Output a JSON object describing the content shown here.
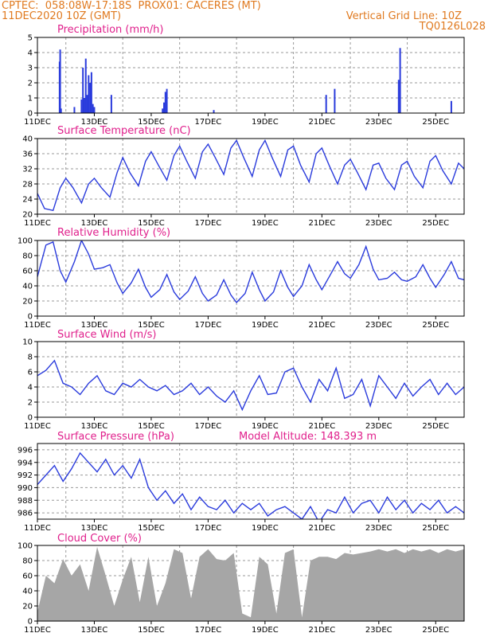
{
  "header": {
    "line1_left": "CPTEC:  058:08W-17:18S  PROX01: CACERES (MT)",
    "line2_left": "11DEC2020 10Z (GMT)",
    "line2_right": "Vertical Grid Line: 10Z",
    "line3_right": "TQ0126L028"
  },
  "colors": {
    "header": "#e07a20",
    "panel_title": "#e0208c",
    "series": "#2a3bdc",
    "cloud": "#a6a6a6",
    "grid": "#9a9a9a"
  },
  "x_axis": {
    "labels": [
      "11DEC",
      "13DEC",
      "15DEC",
      "17DEC",
      "19DEC",
      "21DEC",
      "23DEC",
      "25DEC"
    ],
    "label_days": [
      0,
      2,
      4,
      6,
      8,
      10,
      12,
      14
    ],
    "grid_line_days": [
      1,
      3,
      5,
      7,
      9,
      11,
      13,
      15
    ],
    "range_days": [
      0,
      15
    ]
  },
  "chart_data": [
    {
      "id": "precip",
      "type": "bar",
      "title": "Precipitation  (mm/h)",
      "ylim": [
        0,
        5
      ],
      "yticks": [
        0,
        1,
        2,
        3,
        4,
        5
      ],
      "x": [
        0.78,
        0.8,
        0.83,
        1.3,
        1.55,
        1.6,
        1.65,
        1.7,
        1.75,
        1.8,
        1.85,
        1.9,
        1.95,
        2.0,
        2.6,
        4.4,
        4.45,
        4.5,
        4.55,
        6.2,
        10.15,
        10.45,
        12.7,
        12.75,
        14.55
      ],
      "values": [
        3.4,
        4.2,
        0.3,
        0.4,
        0.9,
        3.0,
        1.0,
        3.6,
        1.2,
        2.5,
        2.0,
        2.7,
        0.6,
        0.4,
        1.2,
        0.3,
        0.7,
        1.4,
        1.6,
        0.2,
        1.2,
        1.6,
        2.2,
        4.3,
        0.8
      ]
    },
    {
      "id": "temp",
      "type": "line",
      "title": "Surface Temperature  (nC)",
      "ylim": [
        20,
        40
      ],
      "yticks": [
        20,
        24,
        28,
        32,
        36,
        40
      ],
      "x": [
        0.0,
        0.25,
        0.55,
        0.8,
        1.0,
        1.25,
        1.55,
        1.8,
        2.0,
        2.25,
        2.55,
        2.8,
        3.0,
        3.25,
        3.55,
        3.8,
        4.0,
        4.25,
        4.55,
        4.8,
        5.0,
        5.25,
        5.55,
        5.8,
        6.0,
        6.25,
        6.55,
        6.8,
        7.0,
        7.25,
        7.55,
        7.8,
        8.0,
        8.25,
        8.55,
        8.8,
        9.0,
        9.25,
        9.55,
        9.8,
        10.0,
        10.25,
        10.55,
        10.8,
        11.0,
        11.25,
        11.55,
        11.8,
        12.0,
        12.25,
        12.55,
        12.8,
        13.0,
        13.25,
        13.55,
        13.8,
        14.0,
        14.25,
        14.55,
        14.8,
        15.0
      ],
      "values": [
        25.5,
        21.5,
        21.0,
        27.0,
        29.5,
        27.0,
        23.0,
        28.0,
        29.5,
        27.0,
        24.5,
        31.0,
        35.0,
        31.0,
        27.5,
        34.0,
        36.5,
        33.0,
        29.0,
        35.5,
        38.0,
        34.0,
        29.5,
        36.5,
        38.5,
        35.0,
        30.5,
        37.5,
        39.5,
        35.0,
        30.0,
        37.0,
        39.5,
        35.0,
        30.0,
        37.0,
        38.0,
        33.0,
        28.5,
        36.0,
        37.5,
        33.0,
        28.0,
        33.0,
        34.5,
        31.0,
        26.5,
        33.0,
        33.5,
        29.5,
        26.5,
        33.0,
        34.0,
        30.0,
        27.0,
        34.0,
        35.5,
        31.5,
        28.0,
        33.5,
        32.0
      ]
    },
    {
      "id": "rh",
      "type": "line",
      "title": "Relative Humidity  (%)",
      "ylim": [
        0,
        100
      ],
      "yticks": [
        0,
        20,
        40,
        60,
        80,
        100
      ],
      "x": [
        0.0,
        0.3,
        0.55,
        0.8,
        1.0,
        1.3,
        1.55,
        1.8,
        2.0,
        2.3,
        2.55,
        2.8,
        3.0,
        3.3,
        3.55,
        3.8,
        4.0,
        4.3,
        4.55,
        4.8,
        5.0,
        5.3,
        5.55,
        5.8,
        6.0,
        6.3,
        6.55,
        6.8,
        7.0,
        7.3,
        7.55,
        7.8,
        8.0,
        8.3,
        8.55,
        8.8,
        9.0,
        9.3,
        9.55,
        9.8,
        10.0,
        10.3,
        10.55,
        10.8,
        11.0,
        11.3,
        11.55,
        11.8,
        12.0,
        12.3,
        12.55,
        12.8,
        13.0,
        13.3,
        13.55,
        13.8,
        14.0,
        14.3,
        14.55,
        14.8,
        15.0
      ],
      "values": [
        52.0,
        94.0,
        98.0,
        60.0,
        45.0,
        72.0,
        100.0,
        82.0,
        62.0,
        64.0,
        68.0,
        44.0,
        30.0,
        44.0,
        62.0,
        38.0,
        25.0,
        35.0,
        55.0,
        32.0,
        22.0,
        33.0,
        52.0,
        30.0,
        20.0,
        28.0,
        48.0,
        28.0,
        18.0,
        30.0,
        58.0,
        35.0,
        20.0,
        32.0,
        60.0,
        38.0,
        26.0,
        40.0,
        68.0,
        48.0,
        35.0,
        55.0,
        72.0,
        56.0,
        50.0,
        68.0,
        92.0,
        62.0,
        48.0,
        50.0,
        58.0,
        48.0,
        46.0,
        52.0,
        68.0,
        50.0,
        38.0,
        55.0,
        72.0,
        50.0,
        48.0
      ]
    },
    {
      "id": "wind",
      "type": "line",
      "title": "Surface Wind  (m/s)",
      "ylim": [
        0,
        10
      ],
      "yticks": [
        0,
        2,
        4,
        6,
        8,
        10
      ],
      "x": [
        0.0,
        0.3,
        0.6,
        0.9,
        1.2,
        1.5,
        1.8,
        2.1,
        2.4,
        2.7,
        3.0,
        3.3,
        3.6,
        3.9,
        4.2,
        4.5,
        4.8,
        5.1,
        5.4,
        5.7,
        6.0,
        6.3,
        6.6,
        6.9,
        7.2,
        7.5,
        7.8,
        8.1,
        8.4,
        8.7,
        9.0,
        9.3,
        9.6,
        9.9,
        10.2,
        10.5,
        10.8,
        11.1,
        11.4,
        11.7,
        12.0,
        12.3,
        12.6,
        12.9,
        13.2,
        13.5,
        13.8,
        14.1,
        14.4,
        14.7,
        15.0
      ],
      "values": [
        5.5,
        6.2,
        7.5,
        4.5,
        4.0,
        3.0,
        4.5,
        5.5,
        3.5,
        3.0,
        4.5,
        4.0,
        5.0,
        4.0,
        3.5,
        4.2,
        3.0,
        3.5,
        4.5,
        3.0,
        4.0,
        2.8,
        2.0,
        3.5,
        1.0,
        3.5,
        5.5,
        3.0,
        3.2,
        6.0,
        6.5,
        4.0,
        2.0,
        5.0,
        3.5,
        6.5,
        2.5,
        3.0,
        5.0,
        1.5,
        5.5,
        4.0,
        2.5,
        4.5,
        2.8,
        4.0,
        5.0,
        3.0,
        4.5,
        3.0,
        4.0
      ]
    },
    {
      "id": "pressure",
      "type": "line",
      "title": "Surface Pressure  (hPa)",
      "subtitle": "Model Altitude:  148.393  m",
      "ylim": [
        985,
        997
      ],
      "yticks": [
        986,
        988,
        990,
        992,
        994,
        996
      ],
      "x": [
        0.0,
        0.3,
        0.6,
        0.9,
        1.2,
        1.5,
        1.8,
        2.1,
        2.4,
        2.7,
        3.0,
        3.3,
        3.6,
        3.9,
        4.2,
        4.5,
        4.8,
        5.1,
        5.4,
        5.7,
        6.0,
        6.3,
        6.6,
        6.9,
        7.2,
        7.5,
        7.8,
        8.1,
        8.4,
        8.7,
        9.0,
        9.3,
        9.6,
        9.9,
        10.2,
        10.5,
        10.8,
        11.1,
        11.4,
        11.7,
        12.0,
        12.3,
        12.6,
        12.9,
        13.2,
        13.5,
        13.8,
        14.1,
        14.4,
        14.7,
        15.0
      ],
      "values": [
        990.5,
        992.0,
        993.5,
        991.0,
        993.0,
        995.5,
        994.0,
        992.5,
        994.5,
        992.0,
        993.5,
        991.5,
        994.5,
        990.0,
        988.0,
        989.5,
        987.5,
        989.0,
        986.5,
        988.5,
        987.0,
        986.5,
        988.0,
        986.0,
        987.5,
        986.5,
        987.5,
        985.5,
        986.5,
        987.0,
        986.0,
        985.0,
        987.0,
        984.5,
        986.5,
        986.0,
        988.5,
        986.0,
        987.5,
        988.0,
        986.0,
        988.5,
        986.5,
        988.0,
        986.0,
        987.5,
        986.5,
        988.0,
        986.0,
        987.0,
        986.0
      ]
    },
    {
      "id": "cloud",
      "type": "area",
      "title": "Cloud Cover  (%)",
      "ylim": [
        0,
        100
      ],
      "yticks": [
        0,
        20,
        40,
        60,
        80,
        100
      ],
      "x": [
        0.0,
        0.3,
        0.6,
        0.9,
        1.2,
        1.5,
        1.8,
        2.1,
        2.4,
        2.7,
        3.0,
        3.3,
        3.6,
        3.9,
        4.2,
        4.5,
        4.8,
        5.1,
        5.4,
        5.7,
        6.0,
        6.3,
        6.6,
        6.9,
        7.2,
        7.5,
        7.8,
        8.1,
        8.4,
        8.7,
        9.0,
        9.3,
        9.6,
        9.9,
        10.2,
        10.5,
        10.8,
        11.1,
        11.4,
        11.7,
        12.0,
        12.3,
        12.6,
        12.9,
        13.2,
        13.5,
        13.8,
        14.1,
        14.4,
        14.7,
        15.0
      ],
      "values": [
        12.0,
        60.0,
        50.0,
        82.0,
        60.0,
        75.0,
        40.0,
        98.0,
        60.0,
        20.0,
        55.0,
        85.0,
        25.0,
        85.0,
        20.0,
        50.0,
        95.0,
        90.0,
        30.0,
        85.0,
        95.0,
        82.0,
        80.0,
        90.0,
        10.0,
        5.0,
        85.0,
        75.0,
        10.0,
        90.0,
        95.0,
        5.0,
        80.0,
        85.0,
        85.0,
        82.0,
        90.0,
        88.0,
        90.0,
        92.0,
        95.0,
        92.0,
        95.0,
        90.0,
        95.0,
        92.0,
        95.0,
        90.0,
        95.0,
        92.0,
        95.0
      ]
    }
  ]
}
